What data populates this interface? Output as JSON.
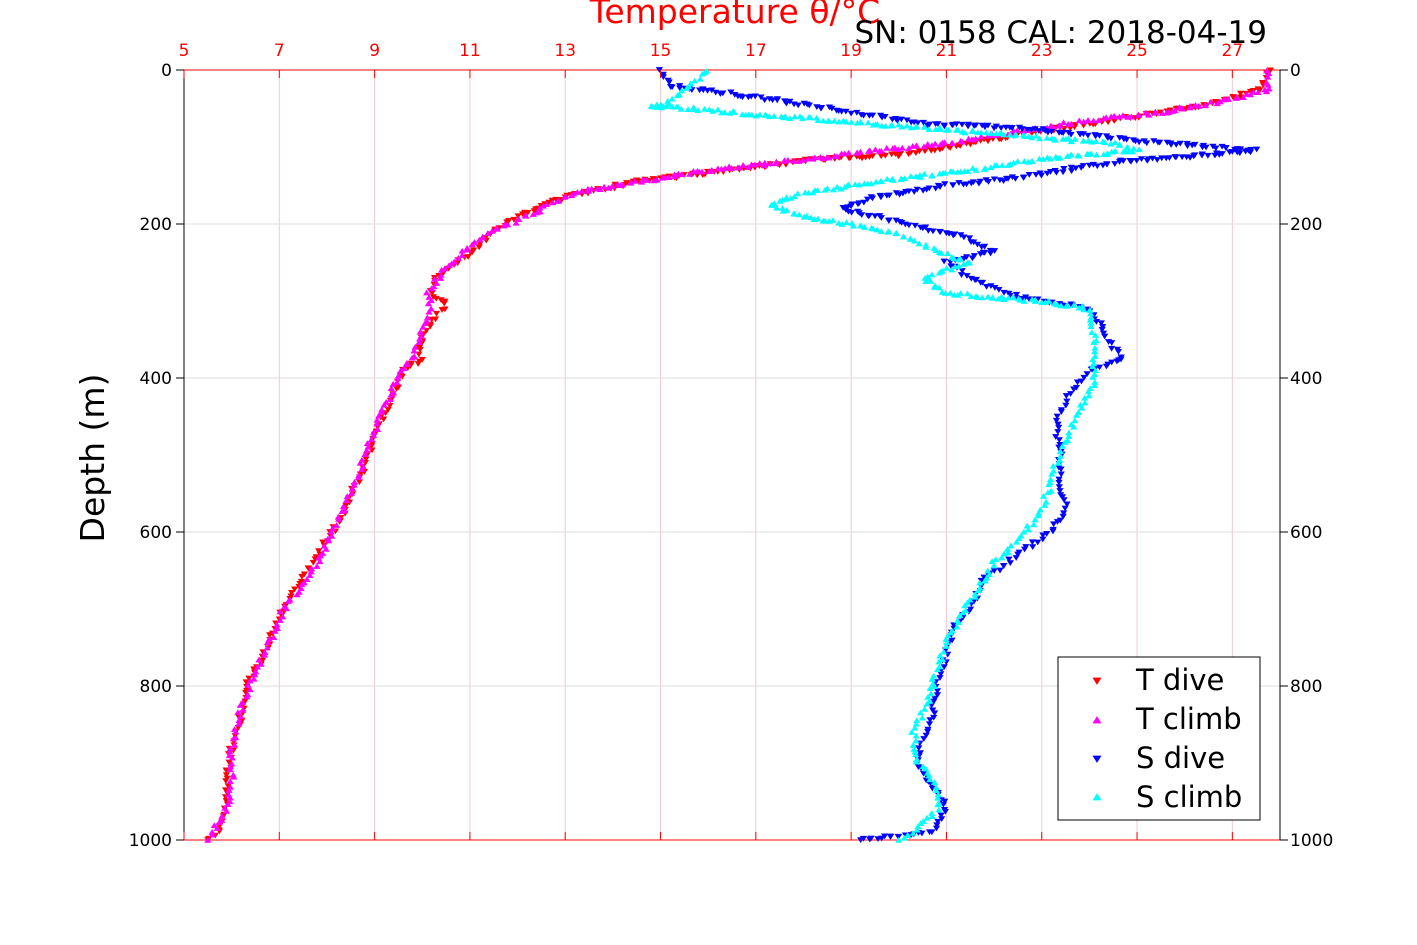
{
  "chart_data": {
    "type": "scatter",
    "title": "",
    "annotation": "SN: 0158  CAL: 2018-04-19",
    "xlabel_top": "Temperature θ/°C",
    "ylabel": "Depth (m)",
    "x_top": {
      "range": [
        5,
        28
      ],
      "ticks": [
        5,
        7,
        9,
        11,
        13,
        15,
        17,
        19,
        21,
        23,
        25,
        27
      ],
      "color": "#ff0000"
    },
    "y": {
      "range": [
        0,
        1000
      ],
      "ticks": [
        0,
        200,
        400,
        600,
        800,
        1000
      ],
      "inverted": true
    },
    "grid": true,
    "legend": {
      "position": "bottom-right"
    },
    "series": [
      {
        "name": "T dive",
        "marker": "triangle-down",
        "color": "#ff0000",
        "points": [
          [
            27.8,
            0
          ],
          [
            27.6,
            25
          ],
          [
            26.5,
            45
          ],
          [
            25.0,
            60
          ],
          [
            23.5,
            75
          ],
          [
            21.5,
            95
          ],
          [
            20.0,
            110
          ],
          [
            18.0,
            118
          ],
          [
            16.2,
            132
          ],
          [
            14.5,
            145
          ],
          [
            13.0,
            165
          ],
          [
            12.0,
            190
          ],
          [
            11.5,
            210
          ],
          [
            11.2,
            230
          ],
          [
            10.7,
            250
          ],
          [
            10.3,
            270
          ],
          [
            10.2,
            290
          ],
          [
            10.5,
            305
          ],
          [
            10.2,
            330
          ],
          [
            9.9,
            360
          ],
          [
            10.0,
            375
          ],
          [
            9.6,
            390
          ],
          [
            9.4,
            420
          ],
          [
            9.1,
            460
          ],
          [
            8.9,
            500
          ],
          [
            8.6,
            540
          ],
          [
            8.3,
            580
          ],
          [
            8.0,
            610
          ],
          [
            7.6,
            650
          ],
          [
            7.3,
            680
          ],
          [
            7.0,
            710
          ],
          [
            6.8,
            740
          ],
          [
            6.6,
            770
          ],
          [
            6.3,
            800
          ],
          [
            6.2,
            840
          ],
          [
            6.0,
            880
          ],
          [
            5.9,
            920
          ],
          [
            5.9,
            960
          ],
          [
            5.7,
            990
          ],
          [
            5.5,
            1000
          ]
        ]
      },
      {
        "name": "T climb",
        "marker": "triangle-up",
        "color": "#ff00ff",
        "points": [
          [
            27.7,
            0
          ],
          [
            27.8,
            25
          ],
          [
            26.8,
            40
          ],
          [
            25.5,
            55
          ],
          [
            24.0,
            65
          ],
          [
            22.5,
            80
          ],
          [
            21.0,
            95
          ],
          [
            19.5,
            105
          ],
          [
            17.8,
            118
          ],
          [
            16.0,
            130
          ],
          [
            14.5,
            145
          ],
          [
            13.2,
            160
          ],
          [
            12.5,
            180
          ],
          [
            12.0,
            195
          ],
          [
            11.3,
            215
          ],
          [
            10.8,
            240
          ],
          [
            10.4,
            265
          ],
          [
            10.1,
            290
          ],
          [
            10.2,
            310
          ],
          [
            10.0,
            340
          ],
          [
            9.8,
            370
          ],
          [
            9.5,
            400
          ],
          [
            9.1,
            450
          ],
          [
            8.8,
            500
          ],
          [
            8.5,
            550
          ],
          [
            8.2,
            590
          ],
          [
            7.8,
            640
          ],
          [
            7.5,
            670
          ],
          [
            7.1,
            700
          ],
          [
            6.8,
            740
          ],
          [
            6.5,
            780
          ],
          [
            6.2,
            830
          ],
          [
            6.0,
            880
          ],
          [
            6.0,
            920
          ],
          [
            5.9,
            960
          ],
          [
            5.6,
            990
          ],
          [
            5.5,
            1000
          ]
        ]
      },
      {
        "name": "S dive",
        "marker": "triangle-down",
        "color": "#0000ff",
        "points": [
          [
            15.0,
            0
          ],
          [
            15.2,
            20
          ],
          [
            17.5,
            40
          ],
          [
            18.5,
            50
          ],
          [
            20.5,
            70
          ],
          [
            22.5,
            75
          ],
          [
            24.0,
            85
          ],
          [
            25.5,
            95
          ],
          [
            26.5,
            100
          ],
          [
            27.5,
            105
          ],
          [
            24.5,
            120
          ],
          [
            22.5,
            140
          ],
          [
            21.0,
            150
          ],
          [
            19.5,
            165
          ],
          [
            18.8,
            180
          ],
          [
            19.5,
            190
          ],
          [
            20.5,
            205
          ],
          [
            21.3,
            215
          ],
          [
            22.0,
            235
          ],
          [
            21.0,
            250
          ],
          [
            21.5,
            270
          ],
          [
            22.5,
            295
          ],
          [
            24.0,
            310
          ],
          [
            24.2,
            330
          ],
          [
            24.5,
            360
          ],
          [
            24.7,
            375
          ],
          [
            24.0,
            390
          ],
          [
            23.6,
            420
          ],
          [
            23.3,
            460
          ],
          [
            23.4,
            500
          ],
          [
            23.4,
            540
          ],
          [
            23.5,
            570
          ],
          [
            23.2,
            600
          ],
          [
            22.5,
            630
          ],
          [
            21.8,
            660
          ],
          [
            21.6,
            690
          ],
          [
            21.2,
            720
          ],
          [
            21.0,
            760
          ],
          [
            20.8,
            800
          ],
          [
            20.7,
            840
          ],
          [
            20.5,
            870
          ],
          [
            20.4,
            900
          ],
          [
            20.7,
            930
          ],
          [
            21.0,
            960
          ],
          [
            20.7,
            990
          ],
          [
            19.2,
            1000
          ]
        ]
      },
      {
        "name": "S climb",
        "marker": "triangle-up",
        "color": "#00ffff",
        "points": [
          [
            16.0,
            0
          ],
          [
            15.4,
            30
          ],
          [
            15.0,
            50
          ],
          [
            14.8,
            45
          ],
          [
            16.5,
            55
          ],
          [
            18.5,
            65
          ],
          [
            20.5,
            75
          ],
          [
            22.5,
            85
          ],
          [
            24.5,
            95
          ],
          [
            25.0,
            105
          ],
          [
            23.0,
            115
          ],
          [
            21.5,
            130
          ],
          [
            19.5,
            145
          ],
          [
            18.0,
            160
          ],
          [
            17.3,
            175
          ],
          [
            18.0,
            190
          ],
          [
            19.5,
            205
          ],
          [
            20.3,
            220
          ],
          [
            21.0,
            240
          ],
          [
            21.5,
            250
          ],
          [
            20.5,
            270
          ],
          [
            21.0,
            290
          ],
          [
            23.0,
            300
          ],
          [
            24.0,
            310
          ],
          [
            24.1,
            340
          ],
          [
            24.1,
            380
          ],
          [
            24.1,
            410
          ],
          [
            23.8,
            440
          ],
          [
            23.6,
            470
          ],
          [
            23.3,
            510
          ],
          [
            23.2,
            540
          ],
          [
            22.9,
            580
          ],
          [
            22.5,
            610
          ],
          [
            22.0,
            640
          ],
          [
            21.6,
            680
          ],
          [
            21.3,
            710
          ],
          [
            21.0,
            740
          ],
          [
            20.8,
            780
          ],
          [
            20.6,
            820
          ],
          [
            20.3,
            860
          ],
          [
            20.4,
            900
          ],
          [
            20.8,
            930
          ],
          [
            20.8,
            960
          ],
          [
            20.3,
            990
          ],
          [
            20.0,
            1000
          ]
        ]
      }
    ]
  }
}
